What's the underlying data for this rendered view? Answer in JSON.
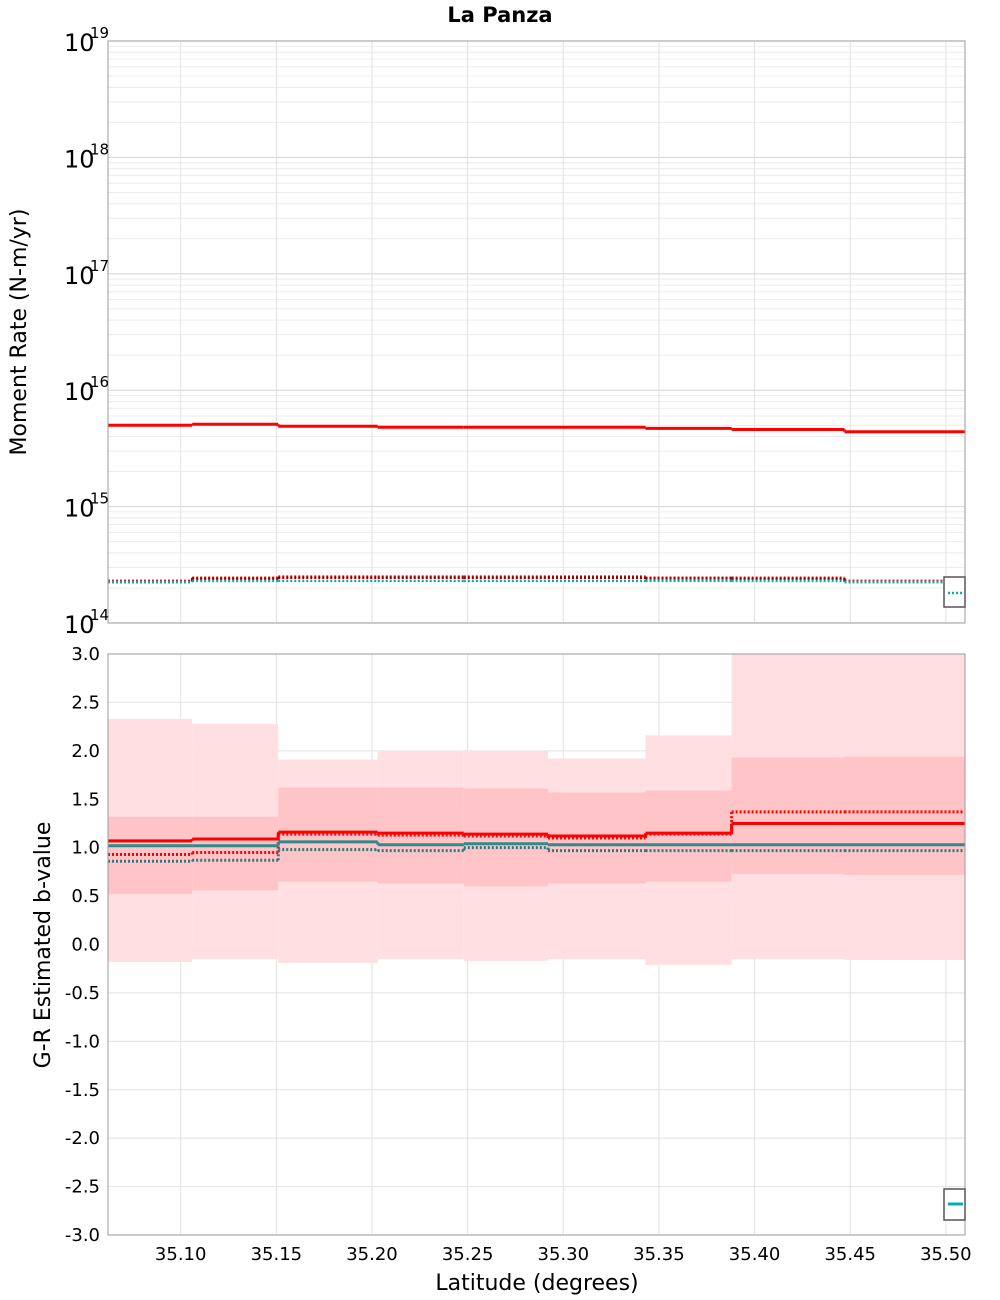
{
  "chart_data": [
    {
      "type": "line",
      "title": "La Panza",
      "ylabel": "Moment Rate (N-m/yr)",
      "xlabel": "",
      "yscale": "log",
      "ylim": [
        100000000000000.0,
        1e+19
      ],
      "xlim": [
        35.062,
        35.51
      ],
      "grid": true,
      "y_ticks": [
        {
          "base": "10",
          "exp": "14",
          "value": 100000000000000.0
        },
        {
          "base": "10",
          "exp": "15",
          "value": 1000000000000000.0
        },
        {
          "base": "10",
          "exp": "16",
          "value": 1e+16
        },
        {
          "base": "10",
          "exp": "17",
          "value": 1e+17
        },
        {
          "base": "10",
          "exp": "18",
          "value": 1e+18
        },
        {
          "base": "10",
          "exp": "19",
          "value": 1e+19
        }
      ],
      "bin_edges": [
        35.062,
        35.106,
        35.151,
        35.203,
        35.248,
        35.292,
        35.343,
        35.388,
        35.447,
        35.51
      ],
      "series": [
        {
          "style": "solid",
          "color": "#ff0000",
          "values": [
            5000000000000000.0,
            5100000000000000.0,
            4900000000000000.0,
            4800000000000000.0,
            4800000000000000.0,
            4800000000000000.0,
            4700000000000000.0,
            4600000000000000.0,
            4400000000000000.0
          ]
        },
        {
          "style": "dotted",
          "color": "#ff0000",
          "values": [
            230000000000000.0,
            245000000000000.0,
            250000000000000.0,
            250000000000000.0,
            250000000000000.0,
            250000000000000.0,
            245000000000000.0,
            245000000000000.0,
            230000000000000.0
          ]
        },
        {
          "style": "dotted",
          "color": "#8b0000",
          "values": [
            225000000000000.0,
            240000000000000.0,
            245000000000000.0,
            245000000000000.0,
            245000000000000.0,
            245000000000000.0,
            242000000000000.0,
            240000000000000.0,
            225000000000000.0
          ]
        },
        {
          "style": "dotted",
          "color": "#00b0b0",
          "values": [
            225000000000000.0,
            230000000000000.0,
            230000000000000.0,
            230000000000000.0,
            230000000000000.0,
            230000000000000.0,
            230000000000000.0,
            230000000000000.0,
            225000000000000.0
          ]
        }
      ],
      "legend": {
        "placement": "bottom-right",
        "color": "#00b0b0",
        "style": "dotted"
      }
    },
    {
      "type": "line",
      "title": "",
      "ylabel": "G-R Estimated b-value",
      "xlabel": "Latitude (degrees)",
      "ylim": [
        -3.0,
        3.0
      ],
      "xlim": [
        35.062,
        35.51
      ],
      "grid": true,
      "y_ticks": [
        "-3.0",
        "-2.5",
        "-2.0",
        "-1.5",
        "-1.0",
        "-0.5",
        "0.0",
        "0.5",
        "1.0",
        "1.5",
        "2.0",
        "2.5",
        "3.0"
      ],
      "x_ticks": [
        "35.10",
        "35.15",
        "35.20",
        "35.25",
        "35.30",
        "35.35",
        "35.40",
        "35.45",
        "35.50"
      ],
      "bin_edges": [
        35.062,
        35.106,
        35.151,
        35.203,
        35.248,
        35.292,
        35.343,
        35.388,
        35.447,
        35.51
      ],
      "bands": [
        {
          "color": "#ffdfe2",
          "lower": [
            -0.18,
            -0.15,
            -0.19,
            -0.15,
            -0.17,
            -0.15,
            -0.21,
            -0.15,
            -0.16
          ],
          "upper": [
            2.33,
            2.28,
            1.91,
            2.0,
            2.0,
            1.92,
            2.16,
            3.0,
            3.0
          ]
        },
        {
          "color": "#ffc4c7",
          "lower": [
            0.52,
            0.56,
            0.65,
            0.63,
            0.6,
            0.63,
            0.65,
            0.73,
            0.72
          ],
          "upper": [
            1.32,
            1.32,
            1.62,
            1.62,
            1.61,
            1.57,
            1.59,
            1.93,
            1.94
          ]
        }
      ],
      "series": [
        {
          "style": "solid",
          "color": "#ff0000",
          "values": [
            1.07,
            1.09,
            1.16,
            1.15,
            1.14,
            1.12,
            1.15,
            1.25,
            1.25
          ]
        },
        {
          "style": "dotted",
          "color": "#ff0000",
          "values": [
            0.93,
            0.95,
            1.14,
            1.13,
            1.12,
            1.1,
            1.14,
            1.37,
            1.37
          ]
        },
        {
          "style": "solid",
          "color": "#2e8b8b",
          "values": [
            1.02,
            1.02,
            1.06,
            1.03,
            1.04,
            1.03,
            1.03,
            1.03,
            1.03
          ]
        },
        {
          "style": "dotted",
          "color": "#2e7b7b",
          "values": [
            0.86,
            0.87,
            0.98,
            0.97,
            1.0,
            0.97,
            0.97,
            0.97,
            0.97
          ]
        }
      ],
      "legend": {
        "placement": "bottom-right",
        "color": "#00b0b0",
        "style": "solid"
      }
    }
  ]
}
